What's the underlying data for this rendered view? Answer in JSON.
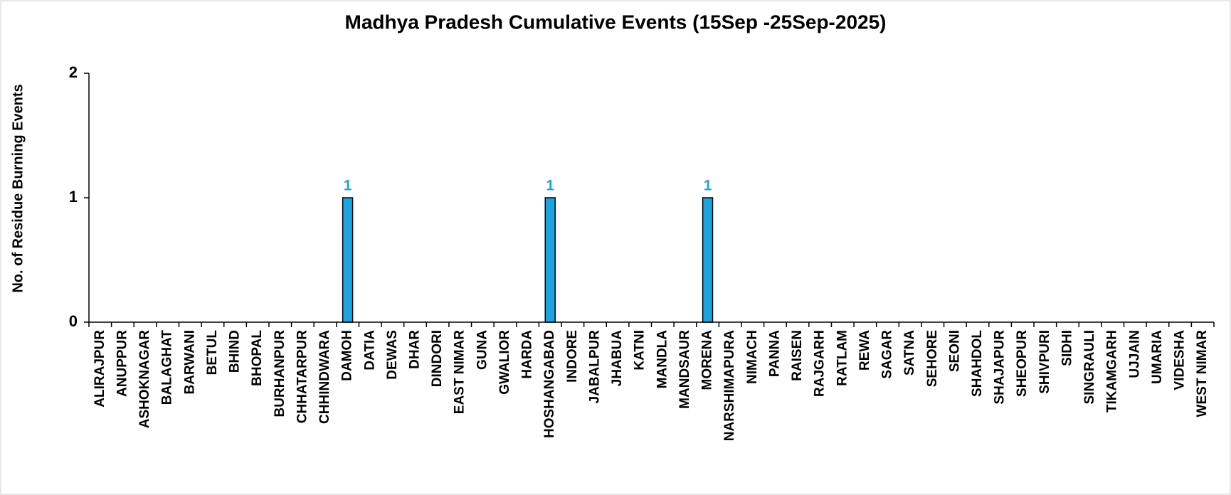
{
  "chart_data": {
    "type": "bar",
    "title": "Madhya Pradesh Cumulative Events (15Sep -25Sep-2025)",
    "y_label": "No. of Residue Burning Events",
    "categories": [
      "ALIRAJPUR",
      "ANUPPUR",
      "ASHOKNAGAR",
      "BALAGHAT",
      "BARWANI",
      "BETUL",
      "BHIND",
      "BHOPAL",
      "BURHANPUR",
      "CHHATARPUR",
      "CHHINDWARA",
      "DAMOH",
      "DATIA",
      "DEWAS",
      "DHAR",
      "DINDORI",
      "EAST NIMAR",
      "GUNA",
      "GWALIOR",
      "HARDA",
      "HOSHANGABAD",
      "INDORE",
      "JABALPUR",
      "JHABUA",
      "KATNI",
      "MANDLA",
      "MANDSAUR",
      "MORENA",
      "NARSHIMAPURA",
      "NIMACH",
      "PANNA",
      "RAISEN",
      "RAJGARH",
      "RATLAM",
      "REWA",
      "SAGAR",
      "SATNA",
      "SEHORE",
      "SEONI",
      "SHAHDOL",
      "SHAJAPUR",
      "SHEOPUR",
      "SHIVPURI",
      "SIDHI",
      "SINGRAULI",
      "TIKAMGARH",
      "UJJAIN",
      "UMARIA",
      "VIDESHA",
      "WEST NIMAR"
    ],
    "values": [
      0,
      0,
      0,
      0,
      0,
      0,
      0,
      0,
      0,
      0,
      0,
      1,
      0,
      0,
      0,
      0,
      0,
      0,
      0,
      0,
      1,
      0,
      0,
      0,
      0,
      0,
      0,
      1,
      0,
      0,
      0,
      0,
      0,
      0,
      0,
      0,
      0,
      0,
      0,
      0,
      0,
      0,
      0,
      0,
      0,
      0,
      0,
      0,
      0,
      0
    ],
    "value_labels": [
      null,
      null,
      null,
      null,
      null,
      null,
      null,
      null,
      null,
      null,
      null,
      "1",
      null,
      null,
      null,
      null,
      null,
      null,
      null,
      null,
      "1",
      null,
      null,
      null,
      null,
      null,
      null,
      "1",
      null,
      null,
      null,
      null,
      null,
      null,
      null,
      null,
      null,
      null,
      null,
      null,
      null,
      null,
      null,
      null,
      null,
      null,
      null,
      null,
      null,
      null
    ],
    "color": "#1ca4e0",
    "label_color": "#1aa7e0",
    "ylim": [
      0,
      2
    ],
    "yticks": [
      0,
      1,
      2
    ],
    "grid": false
  }
}
